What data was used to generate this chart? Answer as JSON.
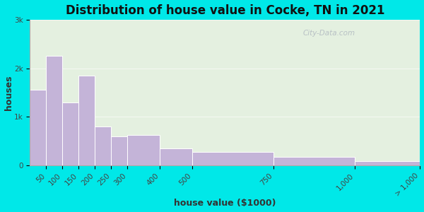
{
  "title": "Distribution of house value in Cocke, TN in 2021",
  "xlabel": "house value ($1000)",
  "ylabel": "houses",
  "bin_edges": [
    0,
    50,
    100,
    150,
    200,
    250,
    300,
    400,
    500,
    750,
    1000,
    1200
  ],
  "bin_labels": [
    "50",
    "100",
    "150",
    "200",
    "250",
    "300",
    "400",
    "500",
    "750",
    "1,000",
    "> 1,000"
  ],
  "values": [
    1550,
    2250,
    1300,
    1850,
    800,
    600,
    620,
    350,
    270,
    170,
    80
  ],
  "bar_color": "#c4b4d8",
  "bar_edge_color": "#ffffff",
  "background_outer": "#00e8e8",
  "background_inner": "#e4f0e0",
  "yticks": [
    0,
    1000,
    2000,
    3000
  ],
  "ytick_labels": [
    "0",
    "1k",
    "2k",
    "3k"
  ],
  "ylim": [
    0,
    3000
  ],
  "title_fontsize": 12,
  "axis_label_fontsize": 9,
  "tick_fontsize": 7.5,
  "watermark": "City-Data.com"
}
